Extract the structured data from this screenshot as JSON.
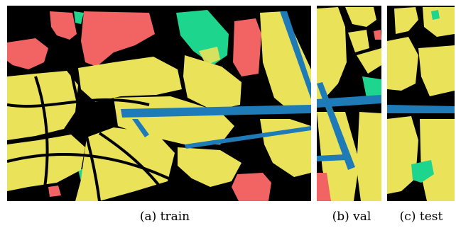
{
  "captions": {
    "train": "(a) train",
    "val": "(b) val",
    "test": "(c) test"
  },
  "colors": {
    "background": "#000000",
    "road_area": "#EAE35A",
    "building": "#F26363",
    "vegetation": "#1ED58E",
    "runway": "#1F7AB8"
  }
}
